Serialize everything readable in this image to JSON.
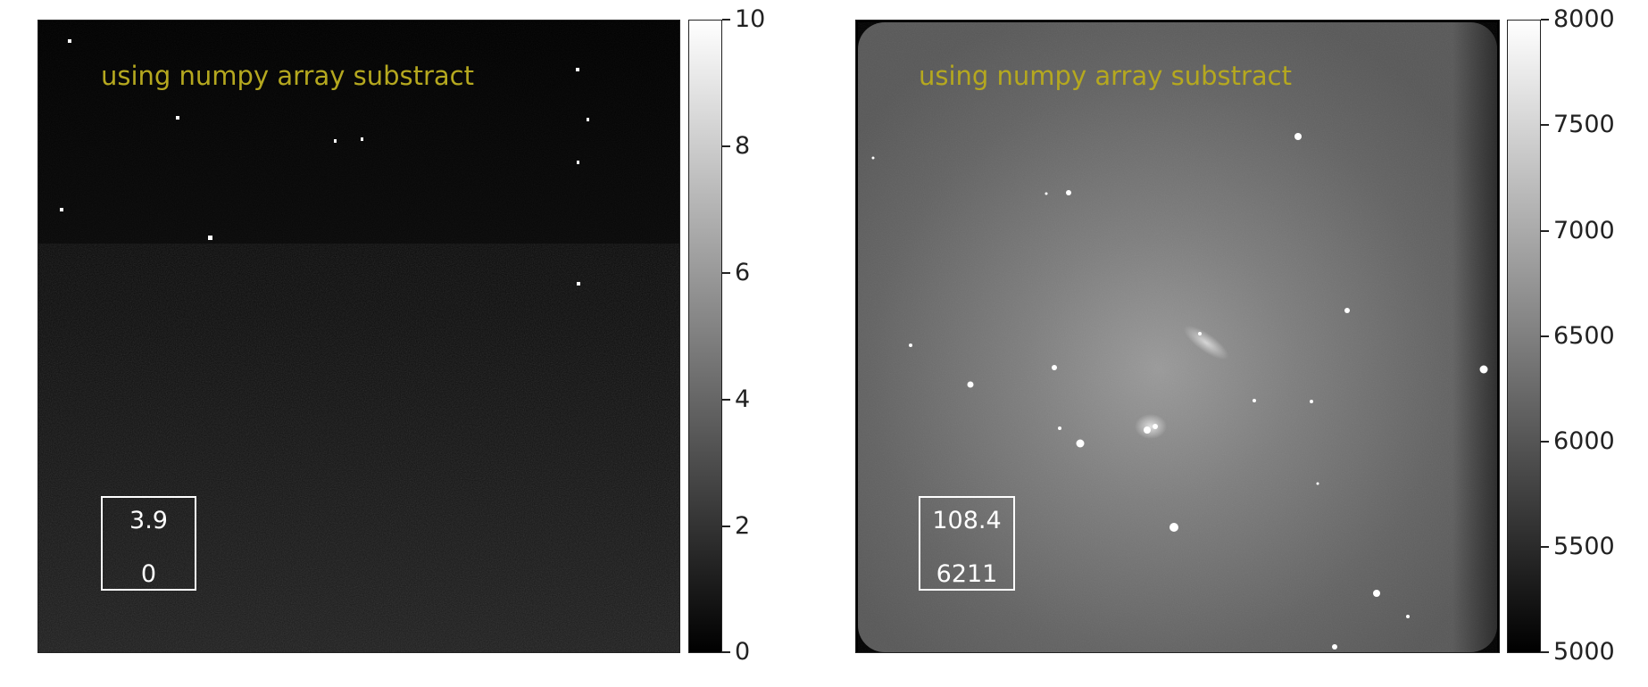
{
  "panels": [
    {
      "id": "left",
      "annotation": "using numpy array substract",
      "stat_top": "3.9",
      "stat_bottom": "0",
      "colorbar": {
        "ticks": [
          "10",
          "8",
          "6",
          "4",
          "2",
          "0"
        ]
      }
    },
    {
      "id": "right",
      "annotation": "using numpy array substract",
      "stat_top": "108.4",
      "stat_bottom": "6211",
      "colorbar": {
        "ticks": [
          "8000",
          "7500",
          "7000",
          "6500",
          "6000",
          "5500",
          "5000"
        ]
      }
    }
  ],
  "colors": {
    "annotation": "#b5a81f",
    "statbox": "#ffffff"
  }
}
